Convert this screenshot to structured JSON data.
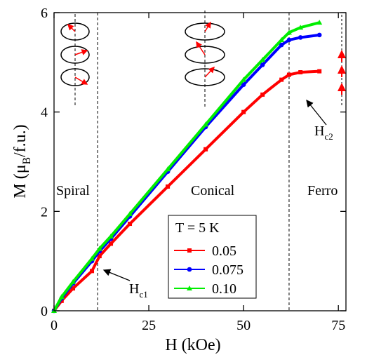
{
  "chart_data": {
    "type": "line",
    "x_label": "H  (kOe)",
    "y_label": {
      "text": "M  (μ",
      "sub": "B",
      "tail": "/f.u.)"
    },
    "xlim": [
      0,
      77
    ],
    "ylim": [
      0,
      6
    ],
    "xticks": [
      0,
      25,
      50,
      75
    ],
    "yticks": [
      0,
      2,
      4,
      6
    ],
    "legend_title": "T = 5 K",
    "phase_boundaries": [
      11.5,
      62
    ],
    "annotations": {
      "spiral": "Spiral",
      "conical": "Conical",
      "ferro": "Ferro",
      "hc1": {
        "text": "H",
        "sub": "c1"
      },
      "hc2": {
        "text": "H",
        "sub": "c2"
      }
    },
    "x": [
      0,
      2,
      5,
      10,
      12,
      15,
      20,
      30,
      40,
      50,
      55,
      60,
      62,
      65,
      70
    ],
    "series": [
      {
        "name": "0.05",
        "color": "#ff0000",
        "marker": "square",
        "values": [
          0,
          0.2,
          0.45,
          0.8,
          1.1,
          1.35,
          1.75,
          2.5,
          3.25,
          4.0,
          4.35,
          4.65,
          4.75,
          4.8,
          4.82
        ]
      },
      {
        "name": "0.075",
        "color": "#0000ff",
        "marker": "circle",
        "values": [
          0,
          0.25,
          0.55,
          1.0,
          1.2,
          1.45,
          1.9,
          2.8,
          3.7,
          4.55,
          4.95,
          5.35,
          5.45,
          5.5,
          5.55
        ]
      },
      {
        "name": "0.10",
        "color": "#00ee00",
        "marker": "triangle",
        "values": [
          0,
          0.28,
          0.58,
          1.05,
          1.25,
          1.5,
          1.95,
          2.85,
          3.75,
          4.65,
          5.05,
          5.45,
          5.6,
          5.7,
          5.8
        ]
      }
    ]
  }
}
